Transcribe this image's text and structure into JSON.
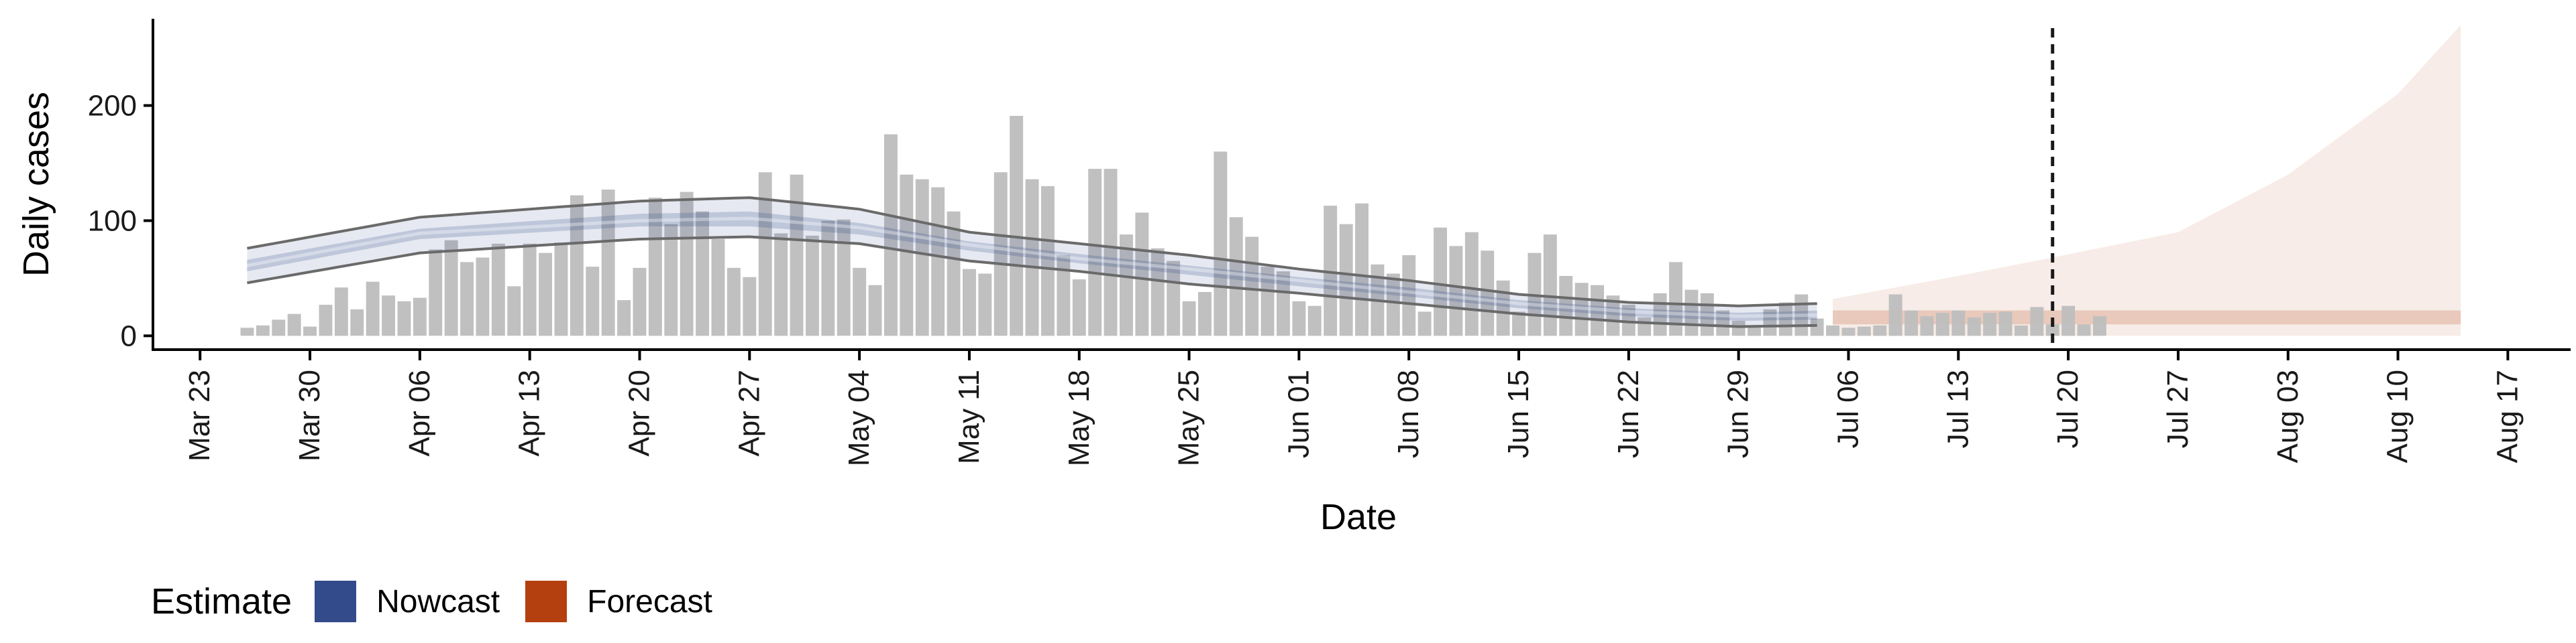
{
  "chart_data": {
    "type": "bar",
    "title": "",
    "xlabel": "Date",
    "ylabel": "Daily cases",
    "ylim": [
      -12,
      280
    ],
    "yticks": [
      0,
      100,
      200
    ],
    "xlim": [
      "2020-03-20",
      "2020-08-21"
    ],
    "xticks": [
      "Mar 23",
      "Mar 30",
      "Apr 06",
      "Apr 13",
      "Apr 20",
      "Apr 27",
      "May 04",
      "May 11",
      "May 18",
      "May 25",
      "Jun 01",
      "Jun 08",
      "Jun 15",
      "Jun 22",
      "Jun 29",
      "Jul 06",
      "Jul 13",
      "Jul 20",
      "Jul 27",
      "Aug 03",
      "Aug 10",
      "Aug 17"
    ],
    "xtick_dates": [
      "2020-03-23",
      "2020-03-30",
      "2020-04-06",
      "2020-04-13",
      "2020-04-20",
      "2020-04-27",
      "2020-05-04",
      "2020-05-11",
      "2020-05-18",
      "2020-05-25",
      "2020-06-01",
      "2020-06-08",
      "2020-06-15",
      "2020-06-22",
      "2020-06-29",
      "2020-07-06",
      "2020-07-13",
      "2020-07-20",
      "2020-07-27",
      "2020-08-03",
      "2020-08-10",
      "2020-08-17"
    ],
    "grid": false,
    "legend_position": "bottom-left",
    "forecast_date": "2020-07-19",
    "colors": {
      "bars": "#bebebe",
      "nowcast": "#334b8a",
      "forecast": "#b5400f",
      "outer_lines": "#6a6a6a",
      "vline": "#1a1a1a"
    },
    "observed_cases": {
      "start": "2020-03-26",
      "values": [
        7,
        9,
        14,
        19,
        8,
        27,
        42,
        23,
        47,
        35,
        30,
        33,
        75,
        83,
        64,
        68,
        80,
        43,
        80,
        72,
        81,
        122,
        60,
        127,
        31,
        59,
        120,
        97,
        125,
        108,
        84,
        59,
        51,
        142,
        89,
        140,
        87,
        100,
        101,
        59,
        44,
        175,
        140,
        136,
        129,
        108,
        58,
        54,
        142,
        191,
        136,
        130,
        70,
        49,
        145,
        145,
        88,
        107,
        76,
        65,
        30,
        38,
        160,
        103,
        86,
        60,
        56,
        30,
        26,
        113,
        97,
        115,
        62,
        54,
        70,
        21,
        94,
        78,
        90,
        74,
        48,
        21,
        72,
        88,
        52,
        46,
        44,
        35,
        27,
        16,
        37,
        64,
        40,
        37,
        22,
        13,
        9,
        23,
        29,
        36,
        15,
        9,
        7,
        8,
        9,
        36,
        22,
        17,
        20,
        22,
        16,
        20,
        21,
        9,
        25,
        10,
        26,
        10,
        17
      ]
    },
    "nowcast": {
      "start": "2020-03-26",
      "end": "2020-07-04",
      "key_dates": [
        "2020-03-26",
        "2020-04-06",
        "2020-04-20",
        "2020-04-27",
        "2020-05-04",
        "2020-05-11",
        "2020-05-18",
        "2020-05-25",
        "2020-06-01",
        "2020-06-08",
        "2020-06-15",
        "2020-06-22",
        "2020-06-29",
        "2020-07-04"
      ],
      "upper90": [
        76,
        103,
        117,
        120,
        110,
        90,
        80,
        70,
        58,
        48,
        36,
        29,
        26,
        28
      ],
      "upper50": [
        66,
        93,
        106,
        108,
        98,
        82,
        71,
        61,
        51,
        42,
        31,
        24,
        20,
        22
      ],
      "median": [
        61,
        89,
        100,
        102,
        94,
        79,
        67,
        58,
        48,
        38,
        28,
        21,
        17,
        18
      ],
      "lower50": [
        56,
        84,
        95,
        95,
        88,
        74,
        63,
        53,
        43,
        34,
        24,
        17,
        13,
        14
      ],
      "lower90": [
        46,
        72,
        84,
        86,
        80,
        65,
        56,
        45,
        37,
        28,
        19,
        12,
        8,
        9
      ]
    },
    "forecast": {
      "start": "2020-07-05",
      "end": "2020-08-14",
      "key_dates": [
        "2020-07-05",
        "2020-07-13",
        "2020-07-19",
        "2020-07-27",
        "2020-08-03",
        "2020-08-10",
        "2020-08-14"
      ],
      "upper": [
        32,
        52,
        68,
        90,
        140,
        210,
        270
      ],
      "lower": [
        0,
        0,
        0,
        0,
        0,
        0,
        0
      ],
      "mid_upper": [
        22,
        22,
        22,
        22,
        22,
        22,
        22
      ],
      "mid_lower": [
        10,
        10,
        10,
        10,
        10,
        10,
        10
      ]
    }
  },
  "legend": {
    "title": "Estimate",
    "items": [
      {
        "label": "Nowcast",
        "color": "#334b8a"
      },
      {
        "label": "Forecast",
        "color": "#b5400f"
      }
    ]
  }
}
